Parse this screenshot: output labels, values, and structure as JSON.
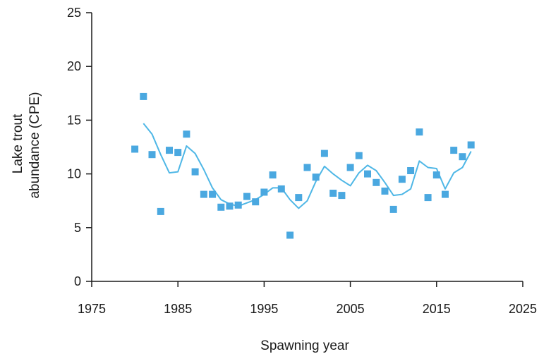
{
  "chart_data": {
    "type": "scatter",
    "xlabel": "Spawning year",
    "ylabel_lines": [
      "Lake trout",
      "abundance (CPE)"
    ],
    "xlim": [
      1975,
      2025
    ],
    "ylim": [
      0,
      25
    ],
    "x_ticks": [
      1975,
      1985,
      1995,
      2005,
      2015,
      2025
    ],
    "y_ticks": [
      0,
      5,
      10,
      15,
      20,
      25
    ],
    "colors": {
      "points": "#4aa8e0",
      "line": "#4fb7e6",
      "axis": "#1a1a1a"
    },
    "series": [
      {
        "kind": "points",
        "x": [
          1980,
          1981,
          1982,
          1983,
          1984,
          1985,
          1986,
          1987,
          1988,
          1989,
          1990,
          1991,
          1992,
          1993,
          1994,
          1995,
          1996,
          1997,
          1998,
          1999,
          2000,
          2001,
          2002,
          2003,
          2004,
          2005,
          2006,
          2007,
          2008,
          2009,
          2010,
          2011,
          2012,
          2013,
          2014,
          2015,
          2016,
          2017,
          2018,
          2019
        ],
        "y": [
          12.3,
          17.2,
          11.8,
          6.5,
          12.2,
          12.0,
          13.7,
          10.2,
          8.1,
          8.1,
          6.9,
          7.0,
          7.1,
          7.9,
          7.4,
          8.3,
          9.9,
          8.6,
          4.3,
          7.8,
          10.6,
          9.7,
          11.9,
          8.2,
          8.0,
          10.6,
          11.7,
          10.0,
          9.2,
          8.4,
          6.7,
          9.5,
          10.3,
          13.9,
          7.8,
          9.9,
          8.1,
          12.2,
          11.6,
          12.7
        ]
      },
      {
        "kind": "line",
        "x": [
          1981,
          1982,
          1983,
          1984,
          1985,
          1986,
          1987,
          1988,
          1989,
          1990,
          1991,
          1992,
          1993,
          1994,
          1995,
          1996,
          1997,
          1998,
          1999,
          2000,
          2001,
          2002,
          2003,
          2004,
          2005,
          2006,
          2007,
          2008,
          2009,
          2010,
          2011,
          2012,
          2013,
          2014,
          2015,
          2016,
          2017,
          2018,
          2019
        ],
        "y": [
          14.7,
          13.7,
          11.8,
          10.1,
          10.2,
          12.6,
          11.9,
          10.4,
          8.7,
          7.6,
          7.2,
          7.0,
          7.3,
          7.6,
          8.1,
          8.7,
          8.7,
          7.6,
          6.8,
          7.5,
          9.3,
          10.7,
          10.0,
          9.4,
          8.9,
          10.1,
          10.8,
          10.3,
          9.2,
          8.0,
          8.1,
          8.6,
          11.2,
          10.6,
          10.5,
          8.6,
          10.1,
          10.6,
          12.1
        ]
      }
    ]
  }
}
